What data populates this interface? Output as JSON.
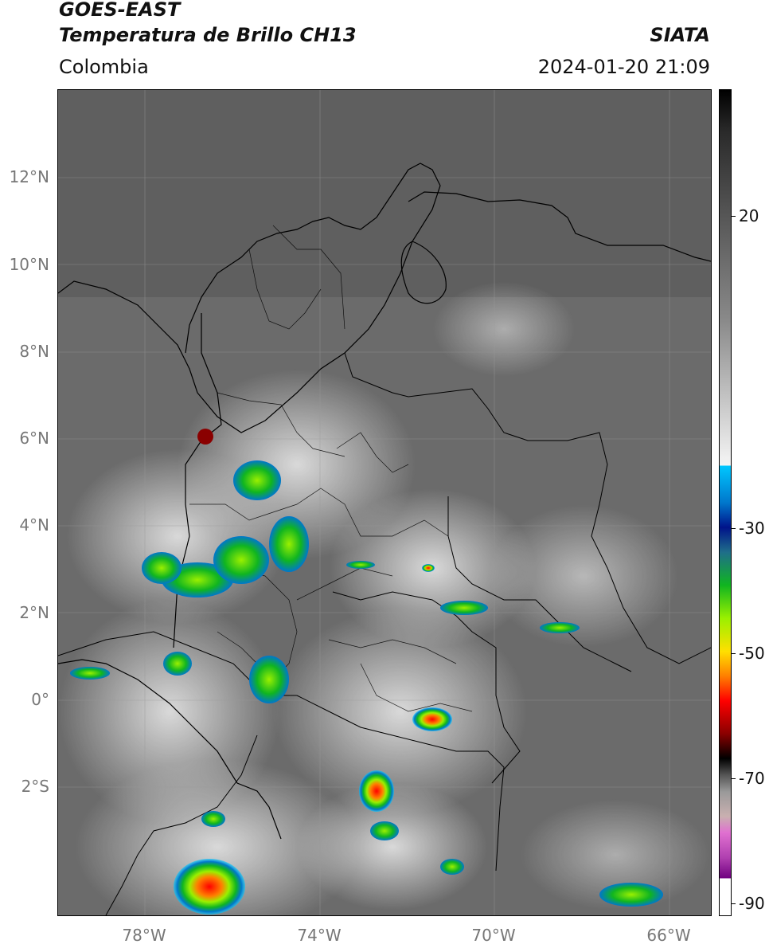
{
  "header": {
    "satellite": "GOES-EAST",
    "product": "Temperatura de Brillo CH13",
    "region": "Colombia",
    "org": "SIATA",
    "timestamp": "2024-01-20 21:09"
  },
  "axes": {
    "lat_labels": [
      "12°N",
      "10°N",
      "8°N",
      "6°N",
      "4°N",
      "2°N",
      "0°",
      "2°S"
    ],
    "lon_labels": [
      "78°W",
      "74°W",
      "70°W",
      "66°W"
    ]
  },
  "colorbar": {
    "labels": [
      "20",
      "-30",
      "-50",
      "-70",
      "-90"
    ],
    "colors": {
      "cold_top": "#ff0000",
      "mid": "#10b520",
      "warm": "#555555",
      "lightest": "#f5f5f5"
    }
  }
}
